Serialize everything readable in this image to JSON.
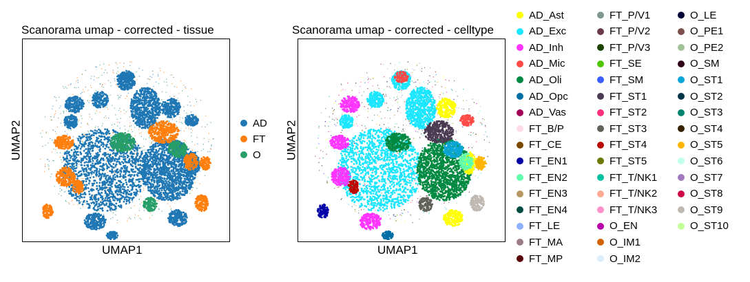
{
  "chart_data": [
    {
      "type": "scatter",
      "title": "Scanorama umap - corrected - tissue",
      "xlabel": "UMAP1",
      "ylabel": "UMAP2",
      "grid": false,
      "ticks": "none",
      "legend_placement": "right",
      "series": [
        {
          "name": "AD",
          "color": "#1f77b4"
        },
        {
          "name": "FT",
          "color": "#ff7f0e"
        },
        {
          "name": "O",
          "color": "#279e68"
        }
      ]
    },
    {
      "type": "scatter",
      "title": "Scanorama umap - corrected - celltype",
      "xlabel": "UMAP1",
      "ylabel": "UMAP2",
      "grid": false,
      "ticks": "none",
      "legend_placement": "right",
      "series": [
        {
          "name": "AD_Ast",
          "color": "#ffff00"
        },
        {
          "name": "AD_Exc",
          "color": "#1ce6ff"
        },
        {
          "name": "AD_Inh",
          "color": "#ff34ff"
        },
        {
          "name": "AD_Mic",
          "color": "#ff4a46"
        },
        {
          "name": "AD_Oli",
          "color": "#008941"
        },
        {
          "name": "AD_Opc",
          "color": "#006fa6"
        },
        {
          "name": "AD_Vas",
          "color": "#a30059"
        },
        {
          "name": "FT_B/P",
          "color": "#ffdbe5"
        },
        {
          "name": "FT_CE",
          "color": "#7a4900"
        },
        {
          "name": "FT_EN1",
          "color": "#0000a6"
        },
        {
          "name": "FT_EN2",
          "color": "#63ffac"
        },
        {
          "name": "FT_EN3",
          "color": "#b79762"
        },
        {
          "name": "FT_EN4",
          "color": "#004d43"
        },
        {
          "name": "FT_LE",
          "color": "#8fb0ff"
        },
        {
          "name": "FT_MA",
          "color": "#997d87"
        },
        {
          "name": "FT_MP",
          "color": "#5a0007"
        },
        {
          "name": "FT_P/V1",
          "color": "#809693"
        },
        {
          "name": "FT_P/V2",
          "color": "#6a3a4c"
        },
        {
          "name": "FT_P/V3",
          "color": "#1b4400"
        },
        {
          "name": "FT_SE",
          "color": "#4fc601"
        },
        {
          "name": "FT_SM",
          "color": "#3b5dff"
        },
        {
          "name": "FT_ST1",
          "color": "#4a3b53"
        },
        {
          "name": "FT_ST2",
          "color": "#ff2f80"
        },
        {
          "name": "FT_ST3",
          "color": "#61615a"
        },
        {
          "name": "FT_ST4",
          "color": "#ba0900"
        },
        {
          "name": "FT_ST5",
          "color": "#6b7900"
        },
        {
          "name": "FT_T/NK1",
          "color": "#00c2a0"
        },
        {
          "name": "FT_T/NK2",
          "color": "#ffaa92"
        },
        {
          "name": "FT_T/NK3",
          "color": "#ff90c9"
        },
        {
          "name": "O_EN",
          "color": "#b903aa"
        },
        {
          "name": "O_IM1",
          "color": "#d16100"
        },
        {
          "name": "O_IM2",
          "color": "#ddefff"
        },
        {
          "name": "O_LE",
          "color": "#000035"
        },
        {
          "name": "O_PE1",
          "color": "#7b4f4b"
        },
        {
          "name": "O_PE2",
          "color": "#a1c299"
        },
        {
          "name": "O_SM",
          "color": "#300018"
        },
        {
          "name": "O_ST1",
          "color": "#0aa6d8"
        },
        {
          "name": "O_ST2",
          "color": "#013349"
        },
        {
          "name": "O_ST3",
          "color": "#00846f"
        },
        {
          "name": "O_ST4",
          "color": "#372101"
        },
        {
          "name": "O_ST5",
          "color": "#ffb500"
        },
        {
          "name": "O_ST6",
          "color": "#c2ffed"
        },
        {
          "name": "O_ST7",
          "color": "#a079bf"
        },
        {
          "name": "O_ST8",
          "color": "#cc0744"
        },
        {
          "name": "O_ST9",
          "color": "#c0b9b2"
        },
        {
          "name": "O_ST10",
          "color": "#c2ff99"
        }
      ]
    }
  ]
}
